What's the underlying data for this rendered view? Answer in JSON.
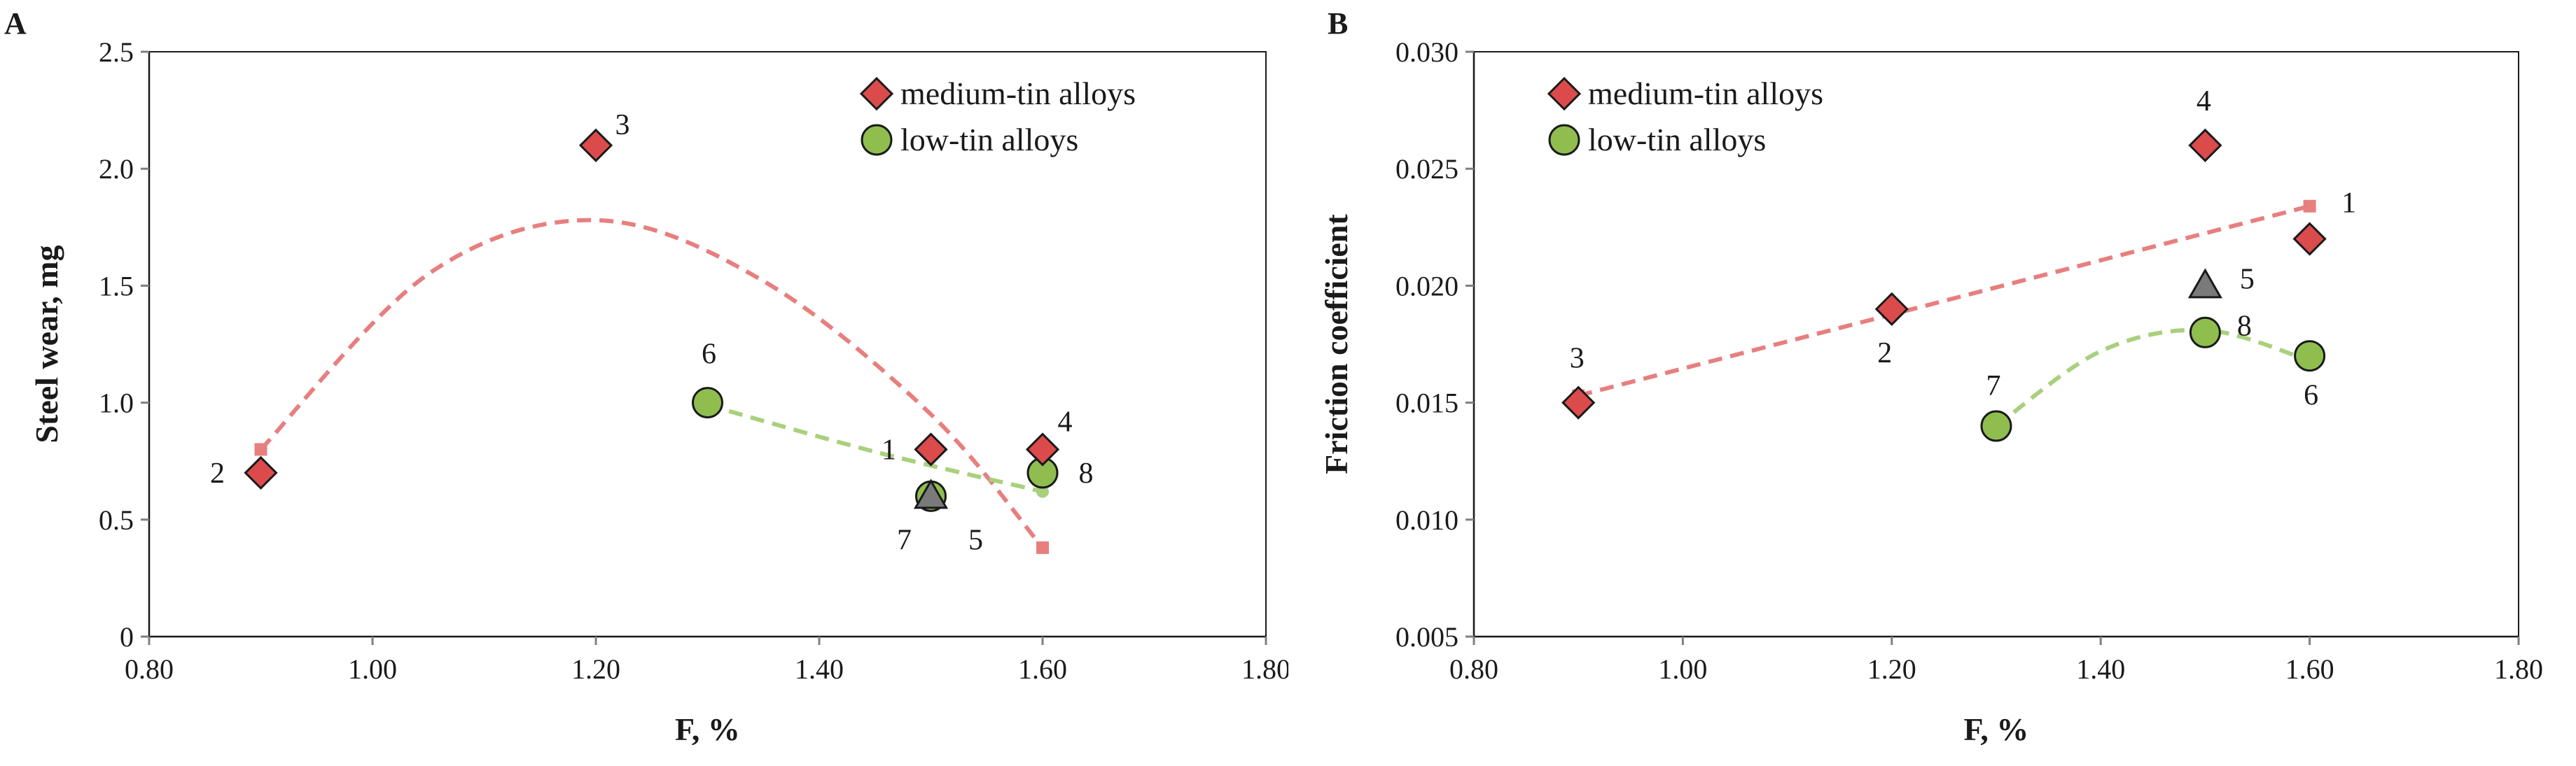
{
  "colors": {
    "medium_marker": "#dc4b4b",
    "medium_trend": "#e77f7f",
    "low_marker": "#8fbe4f",
    "low_trend": "#a9d07d",
    "triangle": "#7a7a7a",
    "axis": "#7f7f7f",
    "text": "#1a1a1a"
  },
  "chart_data": [
    {
      "type": "scatter",
      "panel": "A",
      "xlabel": "F, %",
      "ylabel": "Steel wear, mg",
      "xlim": [
        0.8,
        1.8
      ],
      "ylim": [
        0,
        2.5
      ],
      "xticks": [
        "0.80",
        "1.00",
        "1.20",
        "1.40",
        "1.60",
        "1.80"
      ],
      "yticks": [
        "0",
        "0.5",
        "1.0",
        "1.5",
        "2.0",
        "2.5"
      ],
      "legend": {
        "position": "top-right",
        "entries": [
          "medium-tin alloys",
          "low-tin alloys"
        ]
      },
      "series": [
        {
          "name": "medium-tin alloys",
          "marker": "diamond",
          "points": [
            {
              "label": "1",
              "x": 1.5,
              "y": 0.8
            },
            {
              "label": "2",
              "x": 0.9,
              "y": 0.7
            },
            {
              "label": "3",
              "x": 1.2,
              "y": 2.1
            },
            {
              "label": "4",
              "x": 1.6,
              "y": 0.8
            }
          ],
          "trend": {
            "kind": "poly2",
            "x": [
              0.9,
              1.05,
              1.2,
              1.35,
              1.5,
              1.6
            ],
            "y": [
              0.8,
              1.55,
              1.78,
              1.52,
              0.95,
              0.38
            ]
          }
        },
        {
          "name": "low-tin alloys",
          "marker": "circle",
          "points": [
            {
              "label": "6",
              "x": 1.3,
              "y": 1.0
            },
            {
              "label": "7",
              "x": 1.5,
              "y": 0.6
            },
            {
              "label": "8",
              "x": 1.6,
              "y": 0.7
            }
          ],
          "trend": {
            "kind": "poly2",
            "x": [
              1.3,
              1.45,
              1.6
            ],
            "y": [
              0.99,
              0.79,
              0.62
            ]
          }
        },
        {
          "name": "alloy 5",
          "marker": "triangle",
          "legend": false,
          "points": [
            {
              "label": "5",
              "x": 1.5,
              "y": 0.6
            }
          ]
        }
      ]
    },
    {
      "type": "scatter",
      "panel": "B",
      "xlabel": "F, %",
      "ylabel": "Friction coefficient",
      "xlim": [
        0.8,
        1.8
      ],
      "ylim": [
        0.005,
        0.03
      ],
      "xticks": [
        "0.80",
        "1.00",
        "1.20",
        "1.40",
        "1.60",
        "1.80"
      ],
      "yticks": [
        "0.005",
        "0.010",
        "0.015",
        "0.020",
        "0.025",
        "0.030"
      ],
      "legend": {
        "position": "top-left",
        "entries": [
          "medium-tin alloys",
          "low-tin alloys"
        ]
      },
      "series": [
        {
          "name": "medium-tin alloys",
          "marker": "diamond",
          "points": [
            {
              "label": "1",
              "x": 1.6,
              "y": 0.022
            },
            {
              "label": "2",
              "x": 1.2,
              "y": 0.019
            },
            {
              "label": "3",
              "x": 0.9,
              "y": 0.015
            },
            {
              "label": "4",
              "x": 1.5,
              "y": 0.026
            }
          ],
          "trend": {
            "kind": "linear",
            "x": [
              0.9,
              1.6
            ],
            "y": [
              0.0153,
              0.0234
            ]
          }
        },
        {
          "name": "low-tin alloys",
          "marker": "circle",
          "points": [
            {
              "label": "6",
              "x": 1.6,
              "y": 0.017
            },
            {
              "label": "7",
              "x": 1.3,
              "y": 0.014
            },
            {
              "label": "8",
              "x": 1.5,
              "y": 0.018
            }
          ],
          "trend": {
            "kind": "poly2",
            "x": [
              1.3,
              1.4,
              1.5,
              1.6
            ],
            "y": [
              0.014,
              0.0172,
              0.0181,
              0.0168
            ]
          }
        },
        {
          "name": "alloy 5",
          "marker": "triangle",
          "legend": false,
          "points": [
            {
              "label": "5",
              "x": 1.5,
              "y": 0.02
            }
          ]
        }
      ]
    }
  ]
}
